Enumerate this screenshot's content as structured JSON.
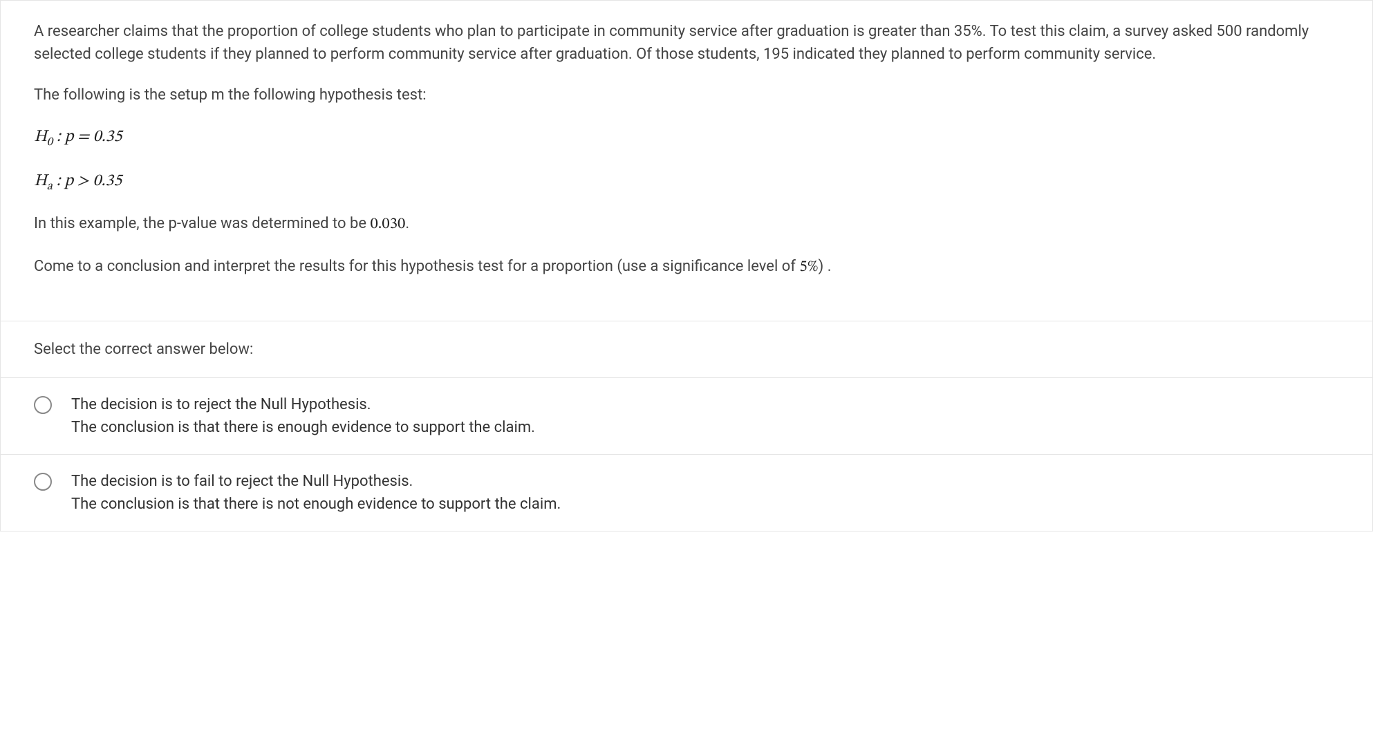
{
  "question": {
    "context": "A researcher claims that the proportion of college students who plan to participate in community service after graduation is greater than 35%.  To test this claim, a survey asked 500 randomly selected college students if they planned to perform community service after graduation. Of those students, 195 indicated they planned to perform community service.",
    "setup_intro": "The following is the setup m the following hypothesis test:",
    "h0": {
      "label": "H",
      "sub": "0",
      "expr": " : p = 0.35"
    },
    "ha": {
      "label": "H",
      "sub": "a",
      "expr": " : p > 0.35"
    },
    "pvalue_line_pre": "In this example, the p-value was determined to be ",
    "pvalue": "0.030",
    "pvalue_line_post": ".",
    "conclusion_prompt_pre": "Come to a conclusion and interpret the results for this hypothesis test for a proportion (use a significance level of ",
    "sig_level": "5%",
    "conclusion_prompt_post": ") ."
  },
  "answer_prompt": "Select the correct answer below:",
  "options": [
    {
      "line1": "The decision is to reject the Null Hypothesis.",
      "line2": "The conclusion is that there is enough evidence to support the claim."
    },
    {
      "line1": "The decision is to fail to reject the Null Hypothesis.",
      "line2": "The conclusion is that there is not enough evidence to support the claim."
    }
  ]
}
